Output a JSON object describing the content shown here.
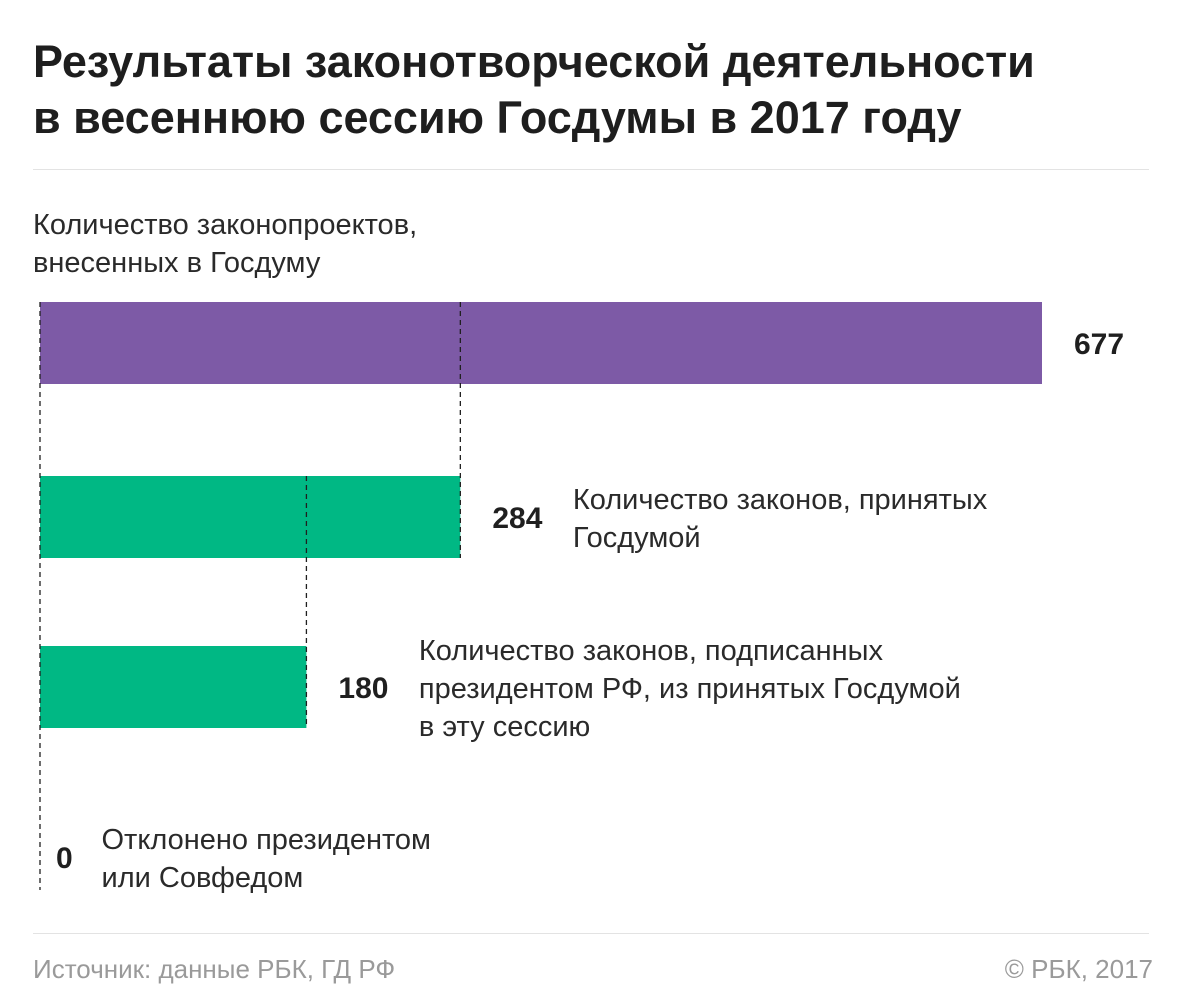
{
  "header": {
    "title_line1": "Результаты законотворческой деятельности",
    "title_line2": "в весеннюю сессию Госдумы в 2017 году"
  },
  "chart_data": {
    "type": "bar",
    "orientation": "horizontal",
    "title": "Результаты законотворческой деятельности в весеннюю сессию Госдумы в 2017 году",
    "label_line1": "Количество законопроектов,",
    "label_line2": "внесенных в Госдуму",
    "xlim": [
      0,
      677
    ],
    "grid": false,
    "bars": [
      {
        "name": "introduced",
        "value": 677,
        "value_label": "677",
        "color": "#7d5aa6",
        "label_lines": []
      },
      {
        "name": "passed",
        "value": 284,
        "value_label": "284",
        "color": "#00b884",
        "label_lines": [
          "Количество законов, принятых",
          "Госдумой"
        ]
      },
      {
        "name": "signed",
        "value": 180,
        "value_label": "180",
        "color": "#00b884",
        "label_lines": [
          "Количество законов, подписанных",
          "президентом РФ, из принятых Госдумой",
          "в эту сессию"
        ]
      },
      {
        "name": "rejected",
        "value": 0,
        "value_label": "0",
        "color": "#00b884",
        "label_lines": [
          "Отклонено президентом",
          "или Совфедом"
        ]
      }
    ]
  },
  "footer": {
    "source": "Источник: данные РБК, ГД РФ",
    "copyright": "© РБК, 2017"
  }
}
